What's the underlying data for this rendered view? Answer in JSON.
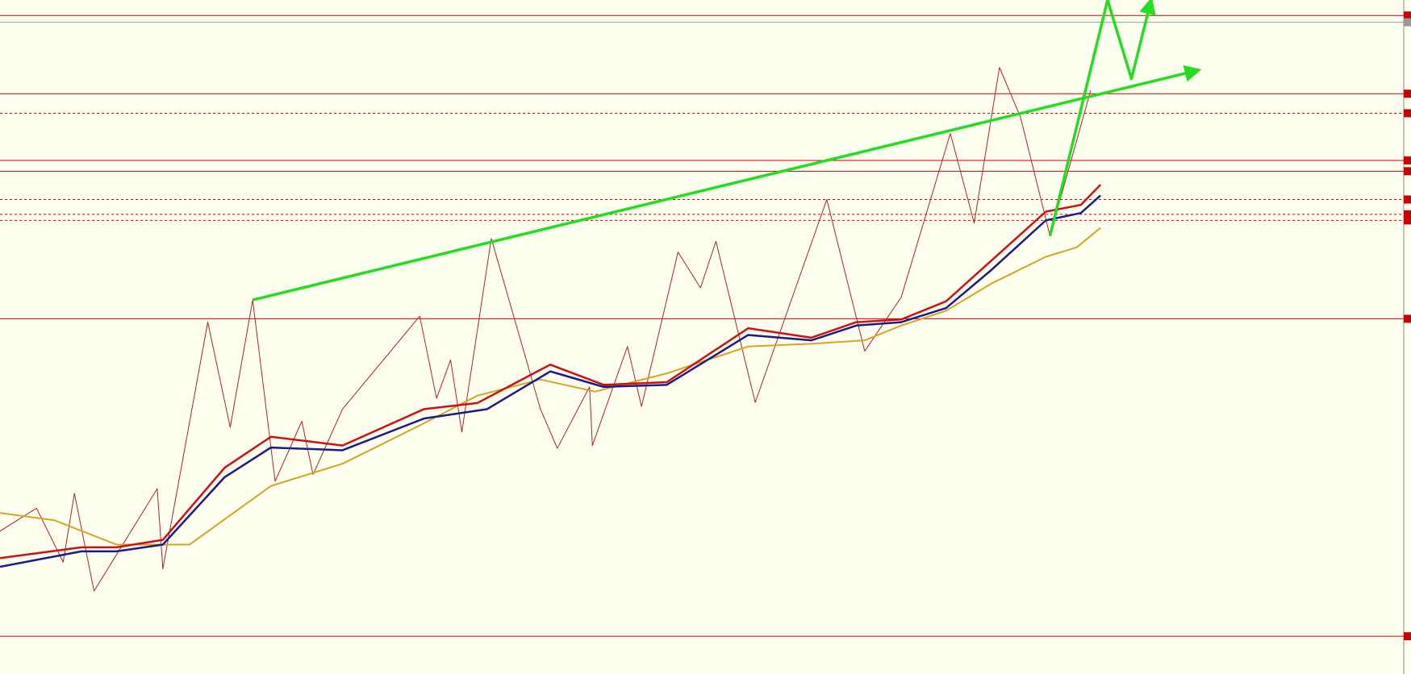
{
  "chart_data": {
    "type": "line",
    "background": "#fffff0",
    "xlim": [
      0,
      100
    ],
    "ylim": [
      0,
      100
    ],
    "series": [
      {
        "color": "#b22222",
        "width": 1,
        "x": [
          0,
          2.6,
          4.5,
          5.3,
          6.7,
          11.2,
          11.6,
          14.8,
          16.4,
          18.0,
          19.6,
          21.5,
          22.3,
          24.4,
          29.9,
          31.1,
          32.1,
          32.9,
          35.0,
          38.5,
          39.7,
          42.0,
          42.2,
          44.7,
          45.7,
          48.3,
          49.9,
          51.0,
          53.8,
          58.9,
          61.6,
          64.2,
          67.7,
          69.4,
          71.2,
          72.7,
          74.8,
          77.7
        ],
        "values": [
          21.2,
          24.6,
          16.6,
          26.8,
          12.3,
          27.5,
          15.6,
          52.2,
          36.6,
          55.5,
          28.6,
          37.5,
          29.6,
          39.3,
          53.1,
          40.9,
          46.6,
          35.9,
          64.6,
          39.3,
          33.5,
          42.6,
          33.9,
          48.6,
          39.7,
          62.6,
          57.3,
          64.2,
          40.3,
          70.4,
          47.9,
          55.9,
          80.2,
          66.9,
          90.0,
          82.6,
          65.0,
          86.6
        ]
      },
      {
        "color": "#d4a520",
        "width": 2,
        "x": [
          0,
          3.9,
          8.3,
          13.5,
          19.3,
          24.4,
          30.2,
          34.0,
          38.5,
          42.4,
          47.5,
          53.3,
          57.8,
          61.6,
          64.2,
          67.4,
          70.6,
          74.5,
          76.7,
          78.4
        ],
        "values": [
          23.9,
          22.8,
          19.2,
          19.2,
          27.9,
          31.2,
          37.2,
          41.3,
          43.7,
          41.9,
          44.6,
          48.6,
          49.0,
          49.5,
          51.7,
          53.9,
          57.9,
          61.9,
          63.3,
          66.2
        ]
      },
      {
        "color": "#1a1a8c",
        "width": 2.5,
        "x": [
          0,
          5.8,
          8.3,
          11.6,
          16.0,
          19.3,
          24.4,
          30.2,
          34.7,
          39.2,
          43.0,
          47.5,
          53.3,
          57.8,
          61.0,
          64.2,
          67.4,
          70.6,
          74.5,
          77.0,
          78.4
        ],
        "values": [
          15.9,
          18.2,
          18.2,
          19.2,
          29.2,
          33.6,
          33.2,
          37.9,
          39.3,
          44.9,
          42.6,
          42.9,
          50.3,
          49.5,
          51.7,
          52.2,
          54.3,
          59.9,
          67.3,
          68.4,
          71.0
        ]
      },
      {
        "color": "#cc1111",
        "width": 2.5,
        "x": [
          0,
          5.8,
          8.3,
          11.6,
          16.0,
          19.3,
          24.4,
          30.2,
          34.0,
          39.2,
          43.0,
          47.5,
          53.3,
          57.8,
          61.0,
          64.2,
          67.4,
          70.6,
          74.5,
          77.0,
          78.4
        ],
        "values": [
          17.2,
          18.8,
          18.8,
          19.9,
          30.6,
          35.2,
          33.9,
          39.3,
          40.2,
          45.9,
          42.9,
          43.3,
          51.3,
          49.9,
          52.2,
          52.6,
          55.3,
          61.3,
          68.6,
          69.6,
          72.6
        ]
      }
    ],
    "levels": [
      {
        "value": 97.7,
        "color": "#cc0000",
        "dash": false
      },
      {
        "value": 96.7,
        "color": "#999999",
        "dash": false
      },
      {
        "value": 86.1,
        "color": "#cc0000",
        "dash": false
      },
      {
        "value": 83.2,
        "color": "#cc0000",
        "dash": true
      },
      {
        "value": 76.2,
        "color": "#cc0000",
        "dash": false
      },
      {
        "value": 74.6,
        "color": "#cc0000",
        "dash": false
      },
      {
        "value": 70.4,
        "color": "#cc0000",
        "dash": true
      },
      {
        "value": 68.2,
        "color": "#cc0000",
        "dash": true
      },
      {
        "value": 67.3,
        "color": "#cc0000",
        "dash": true
      },
      {
        "value": 52.7,
        "color": "#cc0000",
        "dash": false
      },
      {
        "value": 5.6,
        "color": "#cc0000",
        "dash": false
      }
    ],
    "arrows": [
      {
        "color": "#22dd22",
        "x": [
          18.0,
          85.4
        ],
        "values": [
          55.5,
          89.6
        ]
      },
      {
        "color": "#22dd22",
        "x": [
          74.8,
          78.9,
          80.6,
          82.0
        ],
        "values": [
          65.0,
          100,
          88.3,
          100
        ]
      }
    ]
  }
}
